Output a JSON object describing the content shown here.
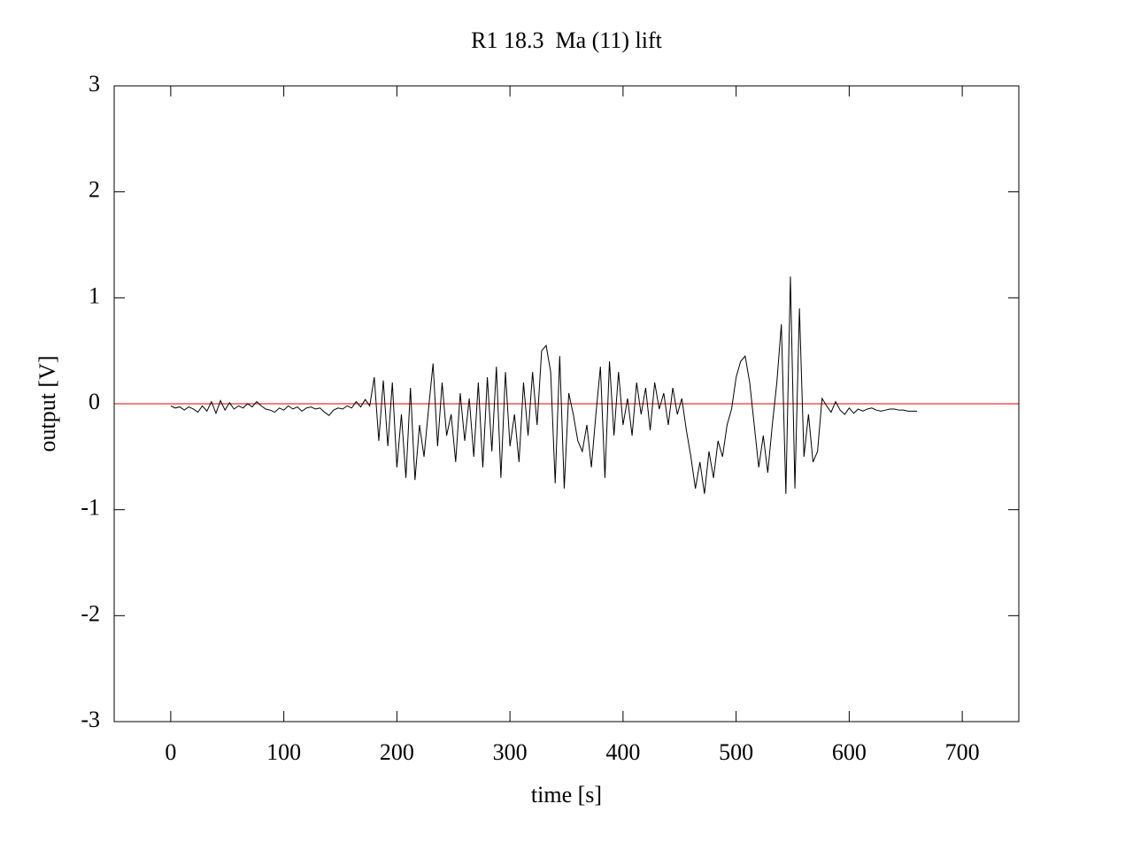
{
  "chart_data": {
    "type": "line",
    "title": "R1 18.3  Ma (11) lift",
    "x_label": "time [s]",
    "y_label": "output [V]",
    "xlim": [
      -50,
      750
    ],
    "ylim": [
      -3,
      3
    ],
    "xticks": [
      0,
      100,
      200,
      300,
      400,
      500,
      600,
      700
    ],
    "yticks": [
      -3,
      -2,
      -1,
      0,
      1,
      2,
      3
    ],
    "reference_line": {
      "y": 0,
      "color": "#e00000"
    },
    "series": [
      {
        "color": "#000000",
        "x": [
          0,
          4,
          8,
          12,
          16,
          20,
          24,
          28,
          32,
          36,
          40,
          44,
          48,
          52,
          56,
          60,
          64,
          68,
          72,
          76,
          80,
          84,
          88,
          92,
          96,
          100,
          104,
          108,
          112,
          116,
          120,
          124,
          128,
          132,
          136,
          140,
          144,
          148,
          152,
          156,
          160,
          164,
          168,
          172,
          176,
          180,
          184,
          188,
          192,
          196,
          200,
          204,
          208,
          212,
          216,
          220,
          224,
          228,
          232,
          236,
          240,
          244,
          248,
          252,
          256,
          260,
          264,
          268,
          272,
          276,
          280,
          284,
          288,
          292,
          296,
          300,
          304,
          308,
          312,
          316,
          320,
          324,
          328,
          332,
          336,
          340,
          344,
          348,
          352,
          356,
          360,
          364,
          368,
          372,
          376,
          380,
          384,
          388,
          392,
          396,
          400,
          404,
          408,
          412,
          416,
          420,
          424,
          428,
          432,
          436,
          440,
          444,
          448,
          452,
          456,
          460,
          464,
          468,
          472,
          476,
          480,
          484,
          488,
          492,
          496,
          500,
          504,
          508,
          512,
          516,
          520,
          524,
          528,
          532,
          536,
          540,
          544,
          548,
          552,
          556,
          560,
          564,
          568,
          572,
          576,
          580,
          584,
          588,
          592,
          596,
          600,
          604,
          608,
          612,
          616,
          620,
          624,
          628,
          632,
          636,
          640,
          644,
          648,
          652,
          656,
          660
        ],
        "values": [
          -0.02,
          -0.04,
          -0.03,
          -0.06,
          -0.03,
          -0.05,
          -0.08,
          -0.02,
          -0.07,
          0.02,
          -0.09,
          0.03,
          -0.06,
          0.01,
          -0.05,
          -0.02,
          -0.04,
          0.0,
          -0.03,
          0.02,
          -0.02,
          -0.05,
          -0.06,
          -0.08,
          -0.04,
          -0.06,
          -0.02,
          -0.05,
          -0.03,
          -0.07,
          -0.04,
          -0.03,
          -0.05,
          -0.04,
          -0.08,
          -0.11,
          -0.06,
          -0.04,
          -0.05,
          -0.02,
          -0.04,
          0.02,
          -0.03,
          0.04,
          -0.02,
          0.25,
          -0.35,
          0.22,
          -0.4,
          0.2,
          -0.6,
          -0.1,
          -0.7,
          0.15,
          -0.72,
          -0.2,
          -0.5,
          -0.05,
          0.38,
          -0.4,
          0.2,
          -0.3,
          -0.1,
          -0.55,
          0.1,
          -0.35,
          0.05,
          -0.5,
          0.2,
          -0.6,
          0.25,
          -0.45,
          0.35,
          -0.7,
          0.3,
          -0.4,
          -0.1,
          -0.55,
          0.2,
          -0.3,
          0.3,
          -0.2,
          0.5,
          0.55,
          0.3,
          -0.75,
          0.45,
          -0.8,
          0.1,
          -0.1,
          -0.35,
          -0.45,
          -0.2,
          -0.6,
          -0.1,
          0.35,
          -0.7,
          0.4,
          -0.3,
          0.3,
          -0.2,
          0.05,
          -0.3,
          0.2,
          -0.1,
          0.15,
          -0.25,
          0.2,
          -0.05,
          0.1,
          -0.2,
          0.15,
          -0.1,
          0.05,
          -0.25,
          -0.5,
          -0.8,
          -0.55,
          -0.85,
          -0.45,
          -0.7,
          -0.35,
          -0.5,
          -0.2,
          -0.05,
          0.25,
          0.4,
          0.45,
          0.2,
          -0.2,
          -0.6,
          -0.3,
          -0.65,
          -0.2,
          0.2,
          0.75,
          -0.85,
          1.2,
          -0.8,
          0.9,
          -0.5,
          -0.1,
          -0.55,
          -0.45,
          0.05,
          -0.02,
          -0.08,
          0.02,
          -0.06,
          -0.1,
          -0.04,
          -0.09,
          -0.05,
          -0.07,
          -0.05,
          -0.04,
          -0.06,
          -0.07,
          -0.06,
          -0.05,
          -0.05,
          -0.06,
          -0.06,
          -0.07,
          -0.07,
          -0.07
        ]
      }
    ]
  }
}
